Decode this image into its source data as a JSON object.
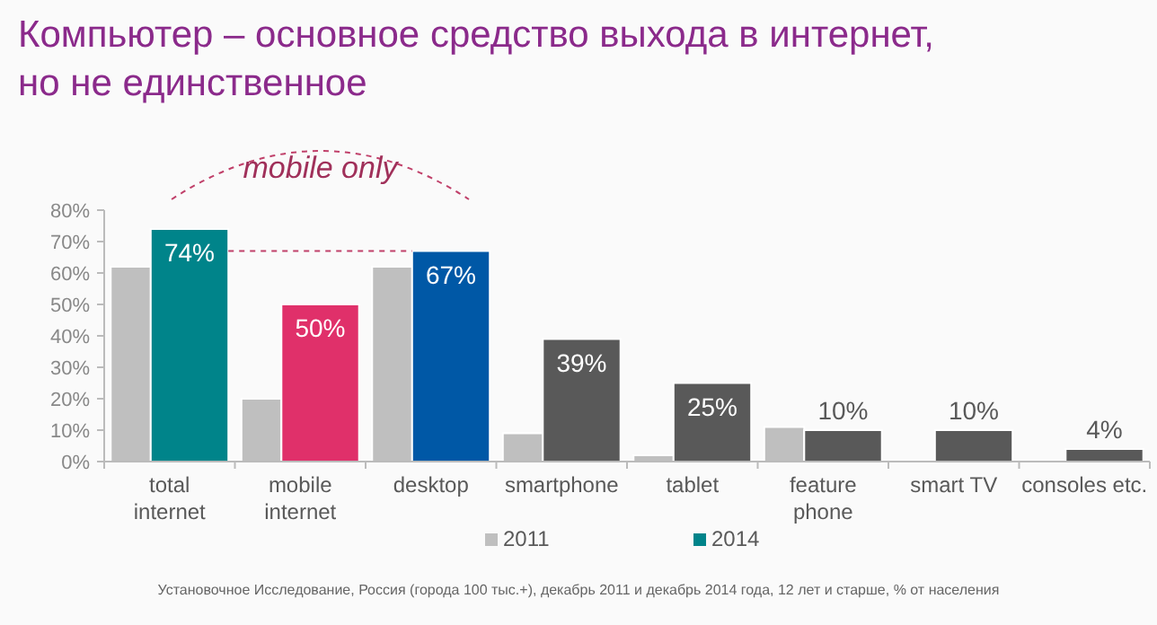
{
  "chart_data": {
    "type": "bar",
    "title": "Компьютер – основное средство выхода в интернет,\nно не единственное",
    "categories": [
      "total\ninternet",
      "mobile\ninternet",
      "desktop",
      "smartphone",
      "tablet",
      "feature\nphone",
      "smart TV",
      "consoles etc."
    ],
    "series": [
      {
        "name": "2011",
        "color": "#bfbfbf",
        "values": [
          62,
          20,
          62,
          9,
          2,
          11,
          null,
          null
        ]
      },
      {
        "name": "2014",
        "color": "#00848a",
        "colors": [
          "#00848a",
          "#e0306a",
          "#0058a6",
          "#595959",
          "#595959",
          "#595959",
          "#595959",
          "#595959"
        ],
        "values": [
          74,
          50,
          67,
          39,
          25,
          10,
          10,
          4
        ],
        "value_labels": [
          "74%",
          "50%",
          "67%",
          "39%",
          "25%",
          "10%",
          "10%",
          "4%"
        ]
      }
    ],
    "ylim": [
      0,
      80
    ],
    "yticks": [
      {
        "value": 0,
        "label": "0%"
      },
      {
        "value": 10,
        "label": "10%"
      },
      {
        "value": 20,
        "label": "20%"
      },
      {
        "value": 30,
        "label": "30%"
      },
      {
        "value": 40,
        "label": "40%"
      },
      {
        "value": 50,
        "label": "50%"
      },
      {
        "value": 60,
        "label": "60%"
      },
      {
        "value": 70,
        "label": "70%"
      },
      {
        "value": 80,
        "label": "80%"
      }
    ],
    "grid": false,
    "legend": "bottom",
    "annotations": [
      "mobile only",
      "Установочное Исследование, Россия (города 100 тыс.+), декабрь 2011 и декабрь 2014 года, 12 лет и старше, % от населения"
    ]
  }
}
